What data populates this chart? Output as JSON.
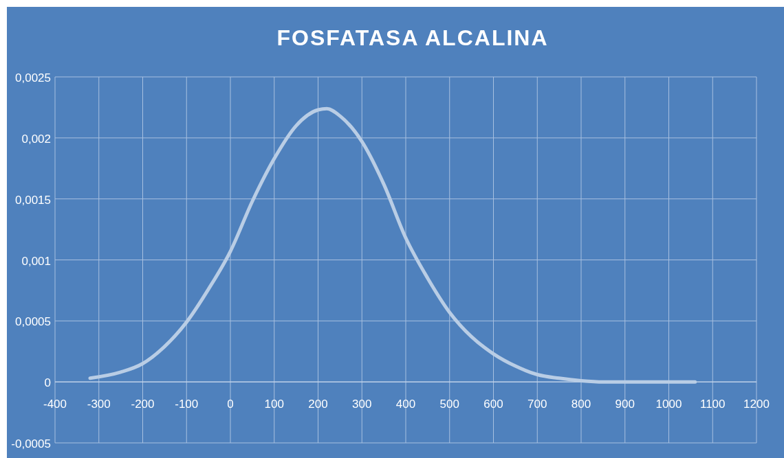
{
  "chart_data": {
    "type": "line",
    "title": "FOSFATASA ALCALINA",
    "x": [
      -320,
      -250,
      -200,
      -150,
      -100,
      -50,
      0,
      50,
      100,
      150,
      200,
      220,
      250,
      300,
      350,
      400,
      450,
      500,
      550,
      600,
      650,
      700,
      750,
      800,
      850,
      900,
      1000,
      1060
    ],
    "series": [
      {
        "color": "#b9cde5",
        "values": [
          3e-05,
          8e-05,
          0.00015,
          0.00029,
          0.00049,
          0.00076,
          0.00107,
          0.00148,
          0.00183,
          0.0021,
          0.00223,
          0.00224,
          0.00218,
          0.00197,
          0.00162,
          0.00118,
          0.00085,
          0.00057,
          0.00037,
          0.00023,
          0.00013,
          6e-05,
          3e-05,
          1e-05,
          0,
          0,
          0,
          0
        ]
      }
    ],
    "xlim": [
      -400,
      1200
    ],
    "xticks": [
      -400,
      -300,
      -200,
      -100,
      0,
      100,
      200,
      300,
      400,
      500,
      600,
      700,
      800,
      900,
      1000,
      1100,
      1200
    ],
    "ylim": [
      -0.0005,
      0.0025
    ],
    "yticks": [
      {
        "value": -0.0005,
        "label": "-0,0005"
      },
      {
        "value": 0,
        "label": "0"
      },
      {
        "value": 0.0005,
        "label": "0,0005"
      },
      {
        "value": 0.001,
        "label": "0,001"
      },
      {
        "value": 0.0015,
        "label": "0,0015"
      },
      {
        "value": 0.002,
        "label": "0,002"
      },
      {
        "value": 0.0025,
        "label": "0,0025"
      }
    ],
    "grid": true,
    "marker": "none",
    "line_style": "solid"
  }
}
